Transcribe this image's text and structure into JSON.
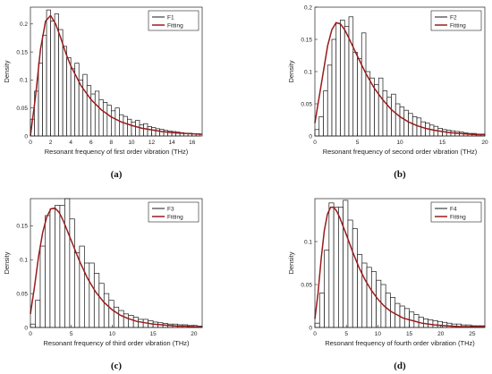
{
  "colors": {
    "bar_edge": "#1a1a1a",
    "bar_fill": "#ffffff",
    "fit_line": "#9a1a1a",
    "axis": "#222222"
  },
  "chart_data": [
    {
      "type": "bar",
      "panel": "(a)",
      "xlabel": "Resonant frequency of first order vibration (THz)",
      "ylabel": "Density",
      "xlim": [
        0,
        17
      ],
      "ylim": [
        0,
        0.23
      ],
      "xticks": [
        "0",
        "2",
        "4",
        "6",
        "8",
        "10",
        "12",
        "14",
        "16"
      ],
      "yticks": [
        "0",
        "0.05",
        "0.1",
        "0.15",
        "0.2"
      ],
      "legend_position": "top-right",
      "series": [
        {
          "name": "F1",
          "kind": "histogram",
          "bin_width": 0.4,
          "values": [
            0.03,
            0.08,
            0.13,
            0.18,
            0.225,
            0.205,
            0.218,
            0.19,
            0.16,
            0.14,
            0.12,
            0.13,
            0.1,
            0.11,
            0.09,
            0.075,
            0.08,
            0.065,
            0.06,
            0.055,
            0.045,
            0.05,
            0.038,
            0.035,
            0.03,
            0.025,
            0.028,
            0.02,
            0.022,
            0.017,
            0.015,
            0.013,
            0.012,
            0.01,
            0.009,
            0.008,
            0.007,
            0.006,
            0.005,
            0.005,
            0.004,
            0.004
          ]
        },
        {
          "name": "Fitting",
          "kind": "line",
          "x": [
            0,
            0.5,
            1,
            1.5,
            2,
            2.5,
            3,
            3.5,
            4,
            5,
            6,
            7,
            8,
            9,
            10,
            11,
            12,
            13,
            14,
            15,
            16,
            17
          ],
          "y": [
            0,
            0.07,
            0.155,
            0.205,
            0.215,
            0.2,
            0.175,
            0.148,
            0.125,
            0.09,
            0.065,
            0.047,
            0.034,
            0.025,
            0.019,
            0.014,
            0.011,
            0.008,
            0.006,
            0.005,
            0.004,
            0.003
          ]
        }
      ]
    },
    {
      "type": "bar",
      "panel": "(b)",
      "xlabel": "Resonant frequency of second order vibration (THz)",
      "ylabel": "Density",
      "xlim": [
        0,
        20
      ],
      "ylim": [
        0,
        0.2
      ],
      "xticks": [
        "0",
        "5",
        "10",
        "15",
        "20"
      ],
      "yticks": [
        "0",
        "0.05",
        "0.1",
        "0.15",
        "0.2"
      ],
      "legend_position": "top-right",
      "series": [
        {
          "name": "F2",
          "kind": "histogram",
          "bin_width": 0.5,
          "values": [
            0.01,
            0.03,
            0.07,
            0.11,
            0.15,
            0.175,
            0.18,
            0.17,
            0.185,
            0.13,
            0.12,
            0.16,
            0.1,
            0.09,
            0.08,
            0.09,
            0.07,
            0.06,
            0.065,
            0.05,
            0.045,
            0.04,
            0.035,
            0.03,
            0.028,
            0.022,
            0.02,
            0.017,
            0.015,
            0.012,
            0.01,
            0.009,
            0.008,
            0.007,
            0.006,
            0.005,
            0.004,
            0.004,
            0.003,
            0.003
          ]
        },
        {
          "name": "Fitting",
          "kind": "line",
          "x": [
            0,
            0.5,
            1,
            1.5,
            2,
            2.5,
            3,
            3.5,
            4,
            5,
            6,
            7,
            8,
            9,
            10,
            11,
            12,
            13,
            14,
            15,
            16,
            17,
            18,
            19,
            20
          ],
          "y": [
            0.02,
            0.06,
            0.1,
            0.14,
            0.165,
            0.176,
            0.174,
            0.165,
            0.152,
            0.124,
            0.097,
            0.074,
            0.056,
            0.041,
            0.03,
            0.022,
            0.016,
            0.012,
            0.009,
            0.007,
            0.005,
            0.004,
            0.003,
            0.002,
            0.002
          ]
        }
      ]
    },
    {
      "type": "bar",
      "panel": "(c)",
      "xlabel": "Resonant frequency of third order vibration (THz)",
      "ylabel": "Density",
      "xlim": [
        0,
        21
      ],
      "ylim": [
        0,
        0.19
      ],
      "xticks": [
        "0",
        "5",
        "10",
        "15",
        "20"
      ],
      "yticks": [
        "0",
        "0.05",
        "0.1",
        "0.15"
      ],
      "legend_position": "top-right",
      "series": [
        {
          "name": "F3",
          "kind": "histogram",
          "bin_width": 0.6,
          "values": [
            0.005,
            0.04,
            0.12,
            0.165,
            0.175,
            0.18,
            0.18,
            0.19,
            0.16,
            0.11,
            0.12,
            0.095,
            0.095,
            0.08,
            0.065,
            0.05,
            0.04,
            0.03,
            0.025,
            0.02,
            0.018,
            0.015,
            0.012,
            0.012,
            0.01,
            0.008,
            0.007,
            0.006,
            0.005,
            0.005,
            0.004,
            0.004,
            0.003,
            0.003,
            0.002
          ]
        },
        {
          "name": "Fitting",
          "kind": "line",
          "x": [
            0,
            0.5,
            1,
            1.5,
            2,
            2.5,
            3,
            3.5,
            4,
            5,
            6,
            7,
            8,
            9,
            10,
            11,
            12,
            13,
            14,
            15,
            16,
            17,
            18,
            19,
            20,
            21
          ],
          "y": [
            0.02,
            0.06,
            0.105,
            0.14,
            0.163,
            0.175,
            0.176,
            0.17,
            0.158,
            0.128,
            0.098,
            0.072,
            0.052,
            0.037,
            0.026,
            0.018,
            0.013,
            0.009,
            0.007,
            0.005,
            0.004,
            0.003,
            0.002,
            0.002,
            0.001,
            0.001
          ]
        }
      ]
    },
    {
      "type": "bar",
      "panel": "(d)",
      "xlabel": "Resonant frequency of fourth order vibration (THz)",
      "ylabel": "Density",
      "xlim": [
        0,
        27
      ],
      "ylim": [
        0,
        0.15
      ],
      "xticks": [
        "0",
        "5",
        "10",
        "15",
        "20",
        "25"
      ],
      "yticks": [
        "0",
        "0.05",
        "0.1"
      ],
      "legend_position": "top-right",
      "series": [
        {
          "name": "F4",
          "kind": "histogram",
          "bin_width": 0.75,
          "values": [
            0.005,
            0.04,
            0.09,
            0.145,
            0.14,
            0.14,
            0.148,
            0.125,
            0.115,
            0.085,
            0.075,
            0.07,
            0.065,
            0.055,
            0.05,
            0.04,
            0.035,
            0.028,
            0.025,
            0.022,
            0.018,
            0.015,
            0.012,
            0.01,
            0.009,
            0.008,
            0.007,
            0.006,
            0.005,
            0.004,
            0.004,
            0.003,
            0.003,
            0.002,
            0.002,
            0.002
          ]
        },
        {
          "name": "Fitting",
          "kind": "line",
          "x": [
            0,
            0.5,
            1,
            1.5,
            2,
            2.5,
            3,
            3.5,
            4,
            5,
            6,
            7,
            8,
            9,
            10,
            11,
            12,
            13,
            14,
            15,
            17,
            19,
            21,
            23,
            25,
            27
          ],
          "y": [
            0.01,
            0.04,
            0.08,
            0.113,
            0.132,
            0.14,
            0.14,
            0.135,
            0.127,
            0.108,
            0.088,
            0.07,
            0.055,
            0.043,
            0.033,
            0.025,
            0.019,
            0.015,
            0.011,
            0.009,
            0.005,
            0.003,
            0.002,
            0.001,
            0.001,
            0.001
          ]
        }
      ]
    }
  ]
}
